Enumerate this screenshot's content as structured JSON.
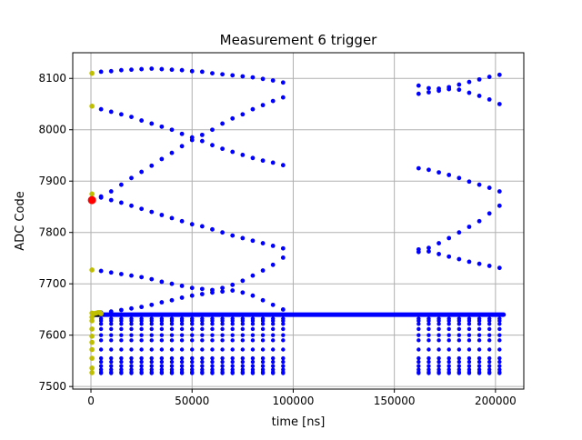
{
  "chart_data": {
    "type": "scatter",
    "title": "Measurement 6 trigger",
    "xlabel": "time [ns]",
    "ylabel": "ADC Code",
    "xlim": [
      -9000,
      214000
    ],
    "ylim": [
      7495,
      8150
    ],
    "xticks": [
      0,
      50000,
      100000,
      150000,
      200000
    ],
    "yticks": [
      7500,
      7600,
      7700,
      7800,
      7900,
      8000,
      8100
    ],
    "grid": true,
    "colors": {
      "series_a": "#0000ff",
      "series_b": "#bfbf00",
      "series_c": "#ff0000",
      "baseline": "#000000",
      "grid": "#b0b0b0"
    },
    "series": [
      {
        "color": "#0000ff",
        "description": "main samples",
        "curves": [
          {
            "x": [
              5000,
              10000,
              15000,
              20000,
              25000,
              30000,
              35000,
              40000,
              45000,
              50000,
              55000,
              60000,
              65000,
              70000,
              75000,
              80000,
              85000,
              90000,
              95000
            ],
            "y": [
              8113,
              8114,
              8116,
              8117,
              8118,
              8119,
              8118,
              8117,
              8116,
              8114,
              8113,
              8110,
              8108,
              8106,
              8104,
              8102,
              8099,
              8096,
              8092
            ]
          },
          {
            "x": [
              5000,
              10000,
              15000,
              20000,
              25000,
              30000,
              35000,
              40000,
              45000,
              50000,
              55000,
              60000,
              65000,
              70000,
              75000,
              80000,
              85000,
              90000,
              95000
            ],
            "y": [
              8040,
              8035,
              8030,
              8025,
              8018,
              8012,
              8006,
              8000,
              7992,
              7985,
              7978,
              7970,
              7963,
              7957,
              7951,
              7945,
              7940,
              7936,
              7931
            ]
          },
          {
            "x": [
              5000,
              10000,
              15000,
              20000,
              25000,
              30000,
              35000,
              40000,
              45000,
              50000,
              55000,
              60000,
              65000,
              70000,
              75000,
              80000,
              85000,
              90000,
              95000
            ],
            "y": [
              7870,
              7880,
              7893,
              7906,
              7918,
              7930,
              7943,
              7955,
              7968,
              7980,
              7990,
              8000,
              8012,
              8022,
              8030,
              8040,
              8048,
              8056,
              8063
            ]
          },
          {
            "x": [
              5000,
              10000,
              15000,
              20000,
              25000,
              30000,
              35000,
              40000,
              45000,
              50000,
              55000,
              60000,
              65000,
              70000,
              75000,
              80000,
              85000,
              90000,
              95000
            ],
            "y": [
              7868,
              7863,
              7858,
              7852,
              7846,
              7840,
              7834,
              7828,
              7822,
              7816,
              7812,
              7806,
              7800,
              7794,
              7789,
              7784,
              7779,
              7774,
              7769
            ]
          },
          {
            "x": [
              5000,
              10000,
              15000,
              20000,
              25000,
              30000,
              35000,
              40000,
              45000,
              50000,
              55000,
              60000,
              65000,
              70000,
              75000,
              80000,
              85000,
              90000,
              95000
            ],
            "y": [
              7725,
              7722,
              7719,
              7716,
              7713,
              7709,
              7704,
              7700,
              7696,
              7692,
              7690,
              7688,
              7692,
              7698,
              7706,
              7716,
              7726,
              7737,
              7751
            ]
          },
          {
            "x": [
              5000,
              10000,
              15000,
              20000,
              25000,
              30000,
              35000,
              40000,
              45000,
              50000,
              55000,
              60000,
              65000,
              70000,
              75000,
              80000,
              85000,
              90000,
              95000
            ],
            "y": [
              7644,
              7646,
              7649,
              7652,
              7655,
              7659,
              7664,
              7668,
              7673,
              7677,
              7680,
              7683,
              7685,
              7687,
              7683,
              7677,
              7668,
              7659,
              7650
            ]
          },
          {
            "x": [
              162000,
              167000,
              172000,
              177000,
              182000,
              187000,
              192000,
              197000,
              202000
            ],
            "y": [
              8086,
              8081,
              8080,
              8083,
              8088,
              8093,
              8098,
              8103,
              8107
            ]
          },
          {
            "x": [
              162000,
              167000,
              172000,
              177000,
              182000,
              187000,
              192000,
              197000,
              202000
            ],
            "y": [
              8070,
              8073,
              8076,
              8079,
              8078,
              8072,
              8066,
              8059,
              8050
            ]
          },
          {
            "x": [
              162000,
              167000,
              172000,
              177000,
              182000,
              187000,
              192000,
              197000,
              202000
            ],
            "y": [
              7925,
              7922,
              7917,
              7912,
              7906,
              7899,
              7893,
              7887,
              7880
            ]
          },
          {
            "x": [
              162000,
              167000,
              172000,
              177000,
              182000,
              187000,
              192000,
              197000,
              202000
            ],
            "y": [
              7762,
              7770,
              7779,
              7789,
              7800,
              7811,
              7822,
              7837,
              7852
            ]
          },
          {
            "x": [
              162000,
              167000,
              172000,
              177000,
              182000,
              187000,
              192000,
              197000,
              202000
            ],
            "y": [
              7767,
              7763,
              7758,
              7753,
              7748,
              7743,
              7739,
              7735,
              7731
            ]
          }
        ],
        "baseline": {
          "y": 7640,
          "x_from": 1000,
          "x_to": 204000
        },
        "bands": {
          "x_left": [
            5000,
            10000,
            15000,
            20000,
            25000,
            30000,
            35000,
            40000,
            45000,
            50000,
            55000,
            60000,
            65000,
            70000,
            75000,
            80000,
            85000,
            90000,
            95000
          ],
          "x_right": [
            162000,
            167000,
            172000,
            177000,
            182000,
            187000,
            192000,
            197000,
            202000
          ],
          "y": [
            7632,
            7628,
            7622,
            7612,
            7600,
            7590,
            7572,
            7555,
            7548,
            7540,
            7533,
            7528,
            7526
          ]
        }
      },
      {
        "color": "#bfbf00",
        "description": "initial samples",
        "x": [
          500,
          500,
          500,
          500,
          500,
          500,
          500,
          500,
          500,
          500,
          500,
          500,
          500,
          500,
          1500,
          2500,
          3500,
          4500,
          5000
        ],
        "y": [
          8110,
          8046,
          7875,
          7727,
          7643,
          7635,
          7628,
          7612,
          7598,
          7586,
          7572,
          7555,
          7536,
          7527,
          7642,
          7643,
          7644,
          7644,
          7642
        ]
      },
      {
        "color": "#ff0000",
        "description": "trigger point",
        "x": [
          500
        ],
        "y": [
          7863
        ]
      }
    ]
  }
}
